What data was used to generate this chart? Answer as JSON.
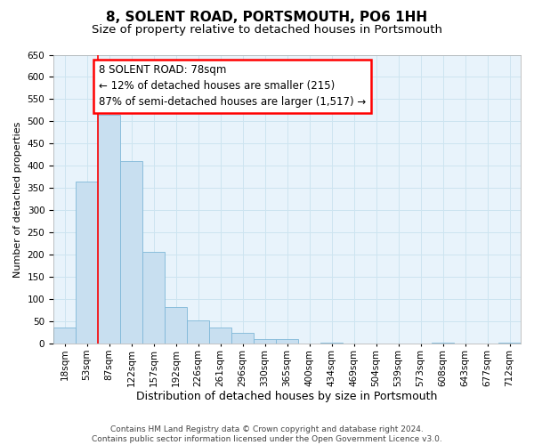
{
  "title": "8, SOLENT ROAD, PORTSMOUTH, PO6 1HH",
  "subtitle": "Size of property relative to detached houses in Portsmouth",
  "xlabel": "Distribution of detached houses by size in Portsmouth",
  "ylabel": "Number of detached properties",
  "bar_labels": [
    "18sqm",
    "53sqm",
    "87sqm",
    "122sqm",
    "157sqm",
    "192sqm",
    "226sqm",
    "261sqm",
    "296sqm",
    "330sqm",
    "365sqm",
    "400sqm",
    "434sqm",
    "469sqm",
    "504sqm",
    "539sqm",
    "573sqm",
    "608sqm",
    "643sqm",
    "677sqm",
    "712sqm"
  ],
  "bar_values": [
    37,
    365,
    515,
    410,
    207,
    83,
    52,
    37,
    24,
    10,
    10,
    0,
    3,
    0,
    0,
    0,
    0,
    2,
    0,
    0,
    2
  ],
  "bar_color": "#c8dff0",
  "bar_edge_color": "#7fb8d8",
  "grid_color": "#cde4f0",
  "background_color": "#ffffff",
  "plot_bg_color": "#e8f3fb",
  "red_line_index": 2,
  "ann_line1": "8 SOLENT ROAD: 78sqm",
  "ann_line2": "← 12% of detached houses are smaller (215)",
  "ann_line3": "87% of semi-detached houses are larger (1,517) →",
  "footer_line1": "Contains HM Land Registry data © Crown copyright and database right 2024.",
  "footer_line2": "Contains public sector information licensed under the Open Government Licence v3.0.",
  "ylim": [
    0,
    650
  ],
  "ytick_interval": 50,
  "title_fontsize": 11,
  "subtitle_fontsize": 9.5,
  "xlabel_fontsize": 9,
  "ylabel_fontsize": 8,
  "tick_fontsize": 7.5,
  "ann_fontsize": 8.5,
  "footer_fontsize": 6.5
}
